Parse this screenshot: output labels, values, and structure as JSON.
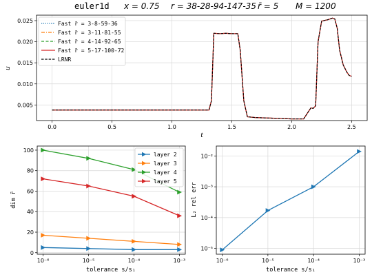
{
  "title_parts": {
    "name": "euler1d",
    "x": "x = 0.75",
    "r": "r = 38-28-94-147-35",
    "rbar": "r̄ = 5",
    "M": "M = 1200"
  },
  "colors": {
    "blue": "#1f77b4",
    "orange": "#ff7f0e",
    "green": "#2ca02c",
    "red": "#d62728",
    "black": "#000000",
    "grid": "#d8d8d8"
  },
  "chart_data": [
    {
      "id": "top",
      "type": "line",
      "title": "",
      "xlabel": "t",
      "ylabel": "u",
      "xlim": [
        -0.13,
        2.63
      ],
      "ylim": [
        0.0013,
        0.0263
      ],
      "xticks": [
        0.0,
        0.5,
        1.0,
        1.5,
        2.0,
        2.5
      ],
      "xtick_labels": [
        "0.0",
        "0.5",
        "1.0",
        "1.5",
        "2.0",
        "2.5"
      ],
      "yticks": [
        0.005,
        0.01,
        0.015,
        0.02,
        0.025
      ],
      "ytick_labels": [
        "0.005",
        "0.010",
        "0.015",
        "0.020",
        "0.025"
      ],
      "grid": true,
      "legend_position": "top-left",
      "x": [
        0.0,
        0.5,
        1.0,
        1.2,
        1.31,
        1.33,
        1.35,
        1.4,
        1.45,
        1.5,
        1.55,
        1.57,
        1.6,
        1.63,
        1.7,
        1.8,
        1.9,
        2.0,
        2.1,
        2.13,
        2.16,
        2.18,
        2.2,
        2.22,
        2.25,
        2.3,
        2.34,
        2.36,
        2.38,
        2.4,
        2.43,
        2.46,
        2.48,
        2.5
      ],
      "y": [
        0.0038,
        0.0038,
        0.0038,
        0.0038,
        0.0038,
        0.006,
        0.022,
        0.0219,
        0.022,
        0.0219,
        0.0219,
        0.018,
        0.006,
        0.0022,
        0.002,
        0.0019,
        0.0018,
        0.0017,
        0.0017,
        0.003,
        0.0043,
        0.0042,
        0.0048,
        0.02,
        0.0249,
        0.0252,
        0.0256,
        0.0254,
        0.0232,
        0.018,
        0.0145,
        0.0128,
        0.012,
        0.0118
      ],
      "series": [
        {
          "name": "Fast r̄ = 3-8-59-36",
          "color": "#1f77b4",
          "dash": "1.2,1.6"
        },
        {
          "name": "Fast r̄ = 3-11-81-55",
          "color": "#ff7f0e",
          "dash": "5,2,1,2"
        },
        {
          "name": "Fast r̄ = 4-14-92-65",
          "color": "#2ca02c",
          "dash": "4,2.5"
        },
        {
          "name": "Fast r̄ = 5-17-100-72",
          "color": "#d62728",
          "dash": ""
        },
        {
          "name": "LRNR",
          "color": "#000000",
          "dash": "3.5,1.8"
        }
      ]
    },
    {
      "id": "bottom-left",
      "type": "line",
      "title": "",
      "xlabel": "tolerance s/s₁",
      "ylabel": "dim r̄",
      "xscale": "log-reversed",
      "x": [
        1e-06,
        1e-05,
        0.0001,
        0.001
      ],
      "xtick_labels": [
        "10⁻⁶",
        "10⁻⁵",
        "10⁻⁴",
        "10⁻³"
      ],
      "ylim": [
        -1.5,
        104
      ],
      "yticks": [
        0,
        20,
        40,
        60,
        80,
        100
      ],
      "ytick_labels": [
        "0",
        "20",
        "40",
        "60",
        "80",
        "100"
      ],
      "grid": true,
      "legend_position": "top-right",
      "series": [
        {
          "name": "layer 2",
          "color": "#1f77b4",
          "values": [
            5,
            4,
            3,
            3
          ]
        },
        {
          "name": "layer 3",
          "color": "#ff7f0e",
          "values": [
            17,
            14,
            11,
            8
          ]
        },
        {
          "name": "layer 4",
          "color": "#2ca02c",
          "values": [
            100,
            92,
            81,
            59
          ]
        },
        {
          "name": "layer 5",
          "color": "#d62728",
          "values": [
            72,
            65,
            55,
            36
          ]
        }
      ]
    },
    {
      "id": "bottom-right",
      "type": "line",
      "title": "",
      "xlabel": "tolerance s/s₁",
      "ylabel": "L₂ rel err",
      "xscale": "log-reversed",
      "yscale": "log",
      "x": [
        1e-06,
        1e-05,
        0.0001,
        0.001
      ],
      "xtick_labels": [
        "10⁻⁶",
        "10⁻⁵",
        "10⁻⁴",
        "10⁻³"
      ],
      "ylim": [
        6.5e-06,
        0.021
      ],
      "yticks": [
        1e-05,
        0.0001,
        0.001,
        0.01
      ],
      "ytick_labels": [
        "10⁻⁵",
        "10⁻⁴",
        "10⁻³",
        "10⁻²"
      ],
      "grid": true,
      "series": [
        {
          "name": "",
          "color": "#1f77b4",
          "values": [
            9e-06,
            0.00017,
            0.001,
            0.014
          ]
        }
      ]
    }
  ]
}
